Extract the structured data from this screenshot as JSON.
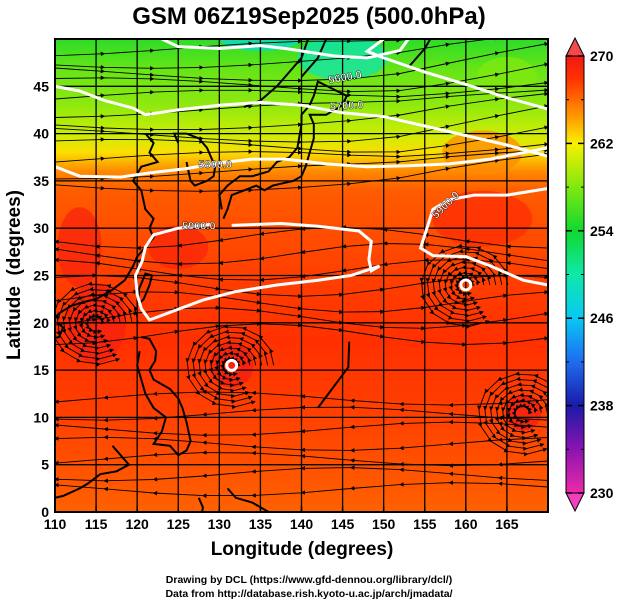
{
  "figure": {
    "title": "GSM 06Z19Sep2025 (500.0hPa)",
    "credit_line_1": "Drawing by DCL (https://www.gfd-dennou.org/library/dcl/)",
    "credit_line_2": "Data from http://database.rish.kyoto-u.ac.jp/arch/jmadata/"
  },
  "chart_data": {
    "type": "map",
    "title": "GSM 06Z19Sep2025 (500.0hPa)",
    "xlabel": "Longitude (degrees)",
    "ylabel": "Latitude  (degrees)",
    "xlim": [
      110,
      170
    ],
    "ylim": [
      0,
      50
    ],
    "xticks": [
      110,
      115,
      120,
      125,
      130,
      135,
      140,
      145,
      150,
      155,
      160,
      165
    ],
    "yticks": [
      0,
      5,
      10,
      15,
      20,
      25,
      30,
      35,
      40,
      45
    ],
    "grid": true,
    "shaded_variable": "temperature (K)",
    "colorbar": {
      "min": 230,
      "max": 270,
      "ticks": [
        230,
        238,
        246,
        254,
        262,
        270
      ],
      "position": "right",
      "extend": "both",
      "colors": [
        {
          "value": 230,
          "color": "#ee2aa8"
        },
        {
          "value": 234,
          "color": "#8a14b0"
        },
        {
          "value": 238,
          "color": "#1a1aa8"
        },
        {
          "value": 242,
          "color": "#1e6cf0"
        },
        {
          "value": 246,
          "color": "#08c8f4"
        },
        {
          "value": 250,
          "color": "#10e8a8"
        },
        {
          "value": 254,
          "color": "#10d830"
        },
        {
          "value": 258,
          "color": "#80e810"
        },
        {
          "value": 262,
          "color": "#f8f000"
        },
        {
          "value": 264,
          "color": "#ffa800"
        },
        {
          "value": 266,
          "color": "#ff6a00"
        },
        {
          "value": 268,
          "color": "#ff3000"
        },
        {
          "value": 270,
          "color": "#f01818"
        }
      ]
    },
    "contours": {
      "variable": "geopotential height (m)",
      "color": "#ffffff",
      "labels": [
        "5600.0",
        "5700.0",
        "5800.0",
        "5900.0",
        "5900.0"
      ]
    },
    "temperature_bands": [
      {
        "lat": 50,
        "lon": 110,
        "temp": 257
      },
      {
        "lat": 50,
        "lon": 145,
        "temp": 251
      },
      {
        "lat": 50,
        "lon": 170,
        "temp": 256
      },
      {
        "lat": 45,
        "lon": 110,
        "temp": 258
      },
      {
        "lat": 45,
        "lon": 145,
        "temp": 254
      },
      {
        "lat": 45,
        "lon": 170,
        "temp": 260
      },
      {
        "lat": 40,
        "lon": 110,
        "temp": 261
      },
      {
        "lat": 40,
        "lon": 145,
        "temp": 259
      },
      {
        "lat": 40,
        "lon": 170,
        "temp": 264
      },
      {
        "lat": 35,
        "lon": 110,
        "temp": 266
      },
      {
        "lat": 35,
        "lon": 145,
        "temp": 265
      },
      {
        "lat": 35,
        "lon": 170,
        "temp": 267
      },
      {
        "lat": 30,
        "lon": 140,
        "temp": 267
      },
      {
        "lat": 20,
        "lon": 140,
        "temp": 268
      },
      {
        "lat": 10,
        "lon": 140,
        "temp": 267
      },
      {
        "lat": 0,
        "lon": 140,
        "temp": 266
      }
    ],
    "features": [
      {
        "name": "typhoon-center",
        "lat": 15.5,
        "lon": 131.5
      },
      {
        "name": "typhoon-center",
        "lat": 24.0,
        "lon": 160.0
      },
      {
        "name": "warm-core",
        "lat": 10.5,
        "lon": 167.0
      },
      {
        "name": "warm-core",
        "lat": 20.0,
        "lon": 115.0
      }
    ]
  }
}
